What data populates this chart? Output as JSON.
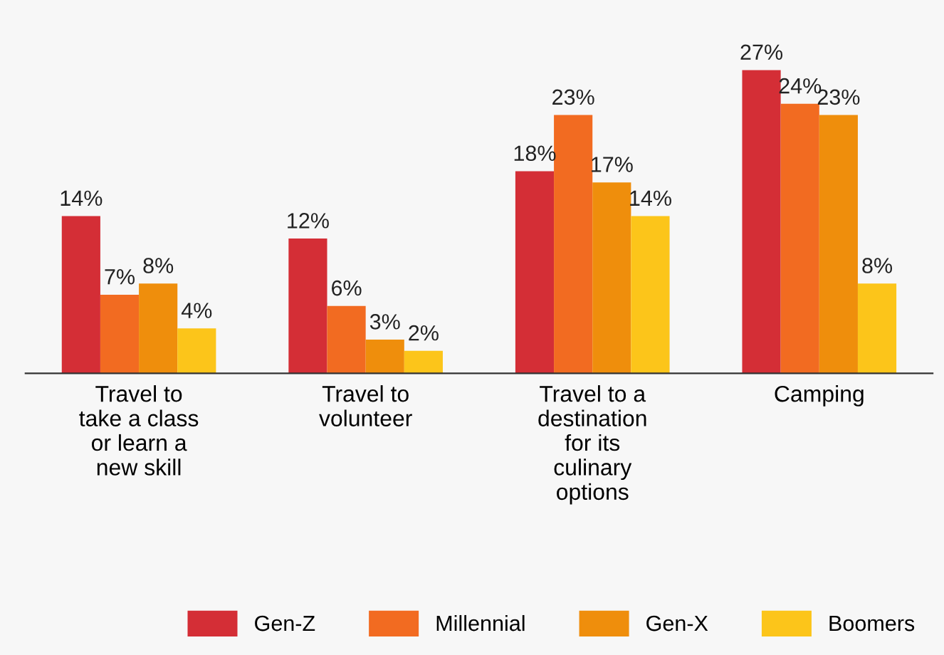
{
  "chart_data": {
    "type": "bar",
    "categories": [
      "Travel to\ntake a class\nor learn a\nnew skill",
      "Travel to\nvolunteer",
      "Travel to a\ndestination\nfor its\nculinary\noptions",
      "Camping"
    ],
    "series": [
      {
        "name": "Gen-Z",
        "color": "#d42e36",
        "values": [
          14,
          12,
          18,
          27
        ],
        "value_labels": [
          "14%",
          "12%",
          "18%",
          "27%"
        ]
      },
      {
        "name": "Millennial",
        "color": "#f26b21",
        "values": [
          7,
          6,
          23,
          24
        ],
        "value_labels": [
          "7%",
          "6%",
          "23%",
          "24%"
        ]
      },
      {
        "name": "Gen-X",
        "color": "#ef8e0c",
        "values": [
          8,
          3,
          17,
          23
        ],
        "value_labels": [
          "8%",
          "3%",
          "17%",
          "23%"
        ]
      },
      {
        "name": "Boomers",
        "color": "#fcc51a",
        "values": [
          4,
          2,
          14,
          8
        ],
        "value_labels": [
          "4%",
          "2%",
          "14%",
          "8%"
        ]
      }
    ],
    "legend": "bottom",
    "grid": false
  }
}
